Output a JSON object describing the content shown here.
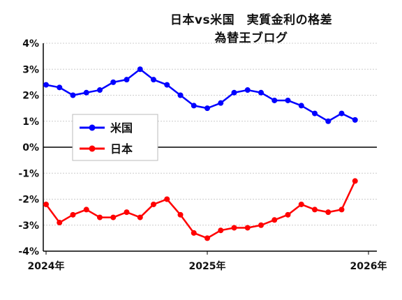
{
  "chart_data": {
    "type": "line",
    "title_line1": "日本vs米国　実質金利の格差",
    "title_line2": "為替王ブログ",
    "x_tick_labels": [
      "2024年",
      "2025年",
      "2026年"
    ],
    "y_tick_labels": [
      "4%",
      "3%",
      "2%",
      "1%",
      "0%",
      "-1%",
      "-2%",
      "-3%",
      "-4%"
    ],
    "ylim": [
      -4,
      4
    ],
    "grid": true,
    "legend_placement": "center-left",
    "colors": {
      "us": "#0000ff",
      "japan": "#ff0000",
      "grid": "#cccccc",
      "axis": "#000000"
    },
    "series": [
      {
        "name": "米国",
        "values": [
          2.4,
          2.3,
          2.0,
          2.1,
          2.2,
          2.5,
          2.6,
          3.0,
          2.6,
          2.4,
          2.0,
          1.6,
          1.5,
          1.7,
          2.1,
          2.2,
          2.1,
          1.8,
          1.8,
          1.6,
          1.3,
          1.0,
          1.3,
          1.05
        ]
      },
      {
        "name": "日本",
        "values": [
          -2.2,
          -2.9,
          -2.6,
          -2.4,
          -2.7,
          -2.7,
          -2.5,
          -2.7,
          -2.2,
          -2.0,
          -2.6,
          -3.3,
          -3.5,
          -3.2,
          -3.1,
          -3.1,
          -3.0,
          -2.8,
          -2.6,
          -2.2,
          -2.4,
          -2.5,
          -2.4,
          -1.3
        ]
      }
    ]
  }
}
